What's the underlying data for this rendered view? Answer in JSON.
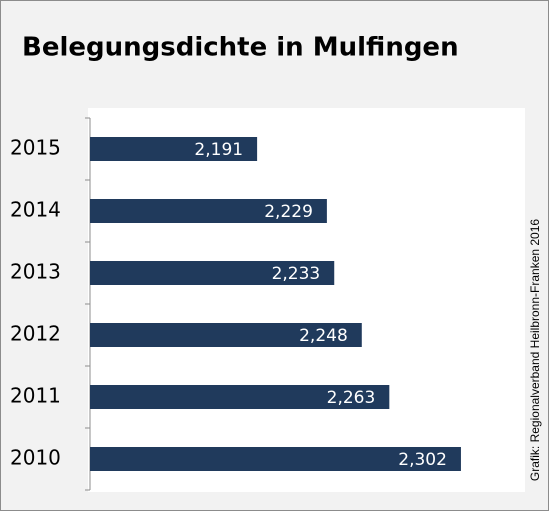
{
  "chart_data": {
    "type": "bar",
    "orientation": "horizontal",
    "title": "Belegungsdichte in Mulfingen",
    "source": "Grafik: Regionalverband Heilbronn-Franken 2016",
    "categories": [
      "2015",
      "2014",
      "2013",
      "2012",
      "2011",
      "2010"
    ],
    "values": [
      2.191,
      2.229,
      2.233,
      2.248,
      2.263,
      2.302
    ],
    "value_labels": [
      "2,191",
      "2,229",
      "2,233",
      "2,248",
      "2,263",
      "2,302"
    ],
    "color": "#203a5c",
    "xlim": [
      2.1,
      2.32
    ]
  }
}
